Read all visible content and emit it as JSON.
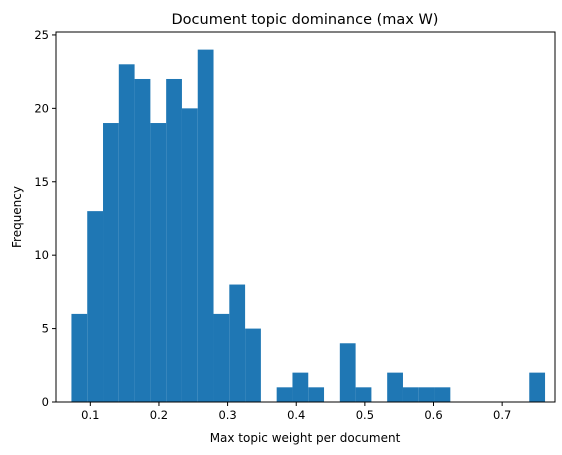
{
  "chart_data": {
    "type": "bar",
    "title": "Document topic dominance (max W)",
    "xlabel": "Max topic weight per document",
    "ylabel": "Frequency",
    "xlim": [
      0.05,
      0.777
    ],
    "ylim": [
      0,
      25.2
    ],
    "bar_color": "#1f77b4",
    "grid": false,
    "bins": [
      {
        "x0": 0.0725,
        "x1": 0.0955,
        "count": 6
      },
      {
        "x0": 0.0955,
        "x1": 0.1185,
        "count": 13
      },
      {
        "x0": 0.1185,
        "x1": 0.1415,
        "count": 19
      },
      {
        "x0": 0.1415,
        "x1": 0.1645,
        "count": 23
      },
      {
        "x0": 0.1645,
        "x1": 0.1875,
        "count": 22
      },
      {
        "x0": 0.1875,
        "x1": 0.2105,
        "count": 19
      },
      {
        "x0": 0.2105,
        "x1": 0.2335,
        "count": 22
      },
      {
        "x0": 0.2335,
        "x1": 0.2565,
        "count": 20
      },
      {
        "x0": 0.2565,
        "x1": 0.2795,
        "count": 24
      },
      {
        "x0": 0.2795,
        "x1": 0.3025,
        "count": 6
      },
      {
        "x0": 0.3025,
        "x1": 0.3255,
        "count": 8
      },
      {
        "x0": 0.3255,
        "x1": 0.3485,
        "count": 5
      },
      {
        "x0": 0.3485,
        "x1": 0.3715,
        "count": 0
      },
      {
        "x0": 0.3715,
        "x1": 0.3945,
        "count": 1
      },
      {
        "x0": 0.3945,
        "x1": 0.4175,
        "count": 2
      },
      {
        "x0": 0.4175,
        "x1": 0.4405,
        "count": 1
      },
      {
        "x0": 0.4405,
        "x1": 0.4635,
        "count": 0
      },
      {
        "x0": 0.4635,
        "x1": 0.4865,
        "count": 4
      },
      {
        "x0": 0.4865,
        "x1": 0.5095,
        "count": 1
      },
      {
        "x0": 0.5095,
        "x1": 0.5325,
        "count": 0
      },
      {
        "x0": 0.5325,
        "x1": 0.5555,
        "count": 2
      },
      {
        "x0": 0.5555,
        "x1": 0.5785,
        "count": 1
      },
      {
        "x0": 0.5785,
        "x1": 0.6015,
        "count": 1
      },
      {
        "x0": 0.6015,
        "x1": 0.6245,
        "count": 1
      },
      {
        "x0": 0.6245,
        "x1": 0.6475,
        "count": 0
      },
      {
        "x0": 0.6475,
        "x1": 0.6705,
        "count": 0
      },
      {
        "x0": 0.6705,
        "x1": 0.6935,
        "count": 0
      },
      {
        "x0": 0.6935,
        "x1": 0.7165,
        "count": 0
      },
      {
        "x0": 0.7165,
        "x1": 0.7395,
        "count": 0
      },
      {
        "x0": 0.7395,
        "x1": 0.7625,
        "count": 2
      }
    ],
    "x_ticks": [
      0.1,
      0.2,
      0.3,
      0.4,
      0.5,
      0.6,
      0.7
    ],
    "x_tick_labels": [
      "0.1",
      "0.2",
      "0.3",
      "0.4",
      "0.5",
      "0.6",
      "0.7"
    ],
    "y_ticks": [
      0,
      5,
      10,
      15,
      20,
      25
    ],
    "y_tick_labels": [
      "0",
      "5",
      "10",
      "15",
      "20",
      "25"
    ]
  }
}
